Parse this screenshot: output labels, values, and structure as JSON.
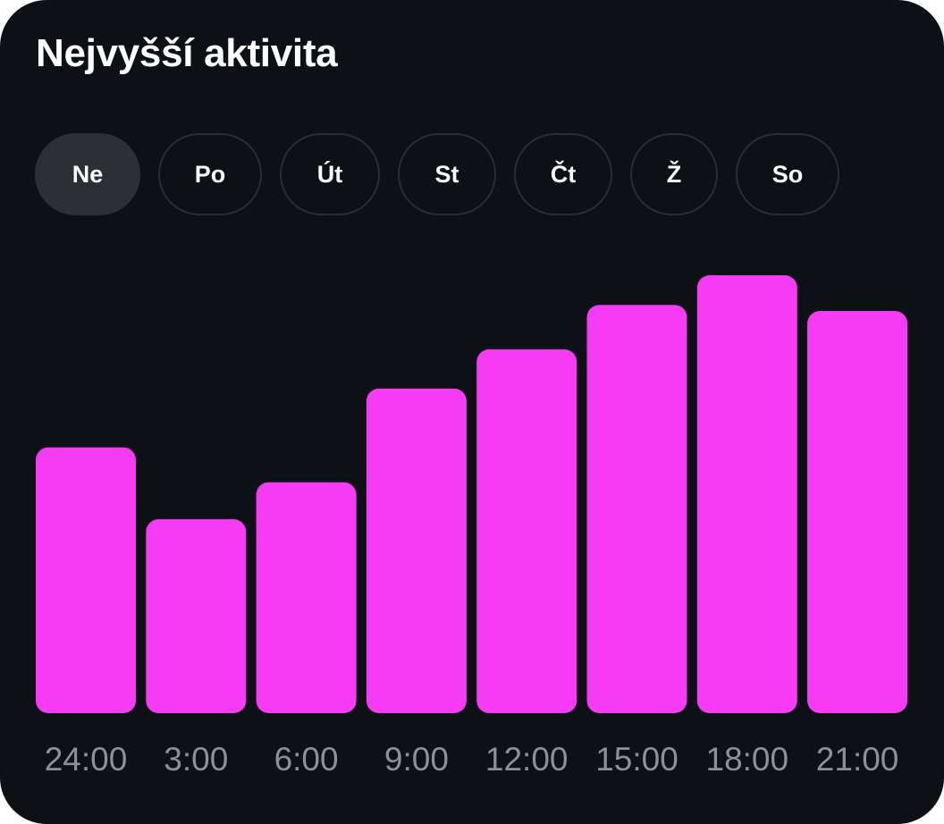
{
  "header": {
    "title": "Nejvyšší aktivita"
  },
  "day_tabs": [
    {
      "label": "Ne",
      "selected": true
    },
    {
      "label": "Po",
      "selected": false
    },
    {
      "label": "Út",
      "selected": false
    },
    {
      "label": "St",
      "selected": false
    },
    {
      "label": "Čt",
      "selected": false
    },
    {
      "label": "Ž",
      "selected": false
    },
    {
      "label": "So",
      "selected": false
    }
  ],
  "colors": {
    "background": "#0d1014",
    "bar": "#f53cf4",
    "tab_active": "#2c3036",
    "tab_border": "#2a2e34",
    "axis_label": "#8d9096"
  },
  "chart_data": {
    "type": "bar",
    "title": "",
    "xlabel": "",
    "ylabel": "",
    "categories": [
      "24:00",
      "3:00",
      "6:00",
      "9:00",
      "12:00",
      "15:00",
      "18:00",
      "21:00"
    ],
    "values": [
      61,
      44.5,
      53,
      74.5,
      83.5,
      93.7,
      100.5,
      92.3
    ],
    "ylim": [
      0,
      100.5
    ],
    "grid": false,
    "legend": "none"
  }
}
